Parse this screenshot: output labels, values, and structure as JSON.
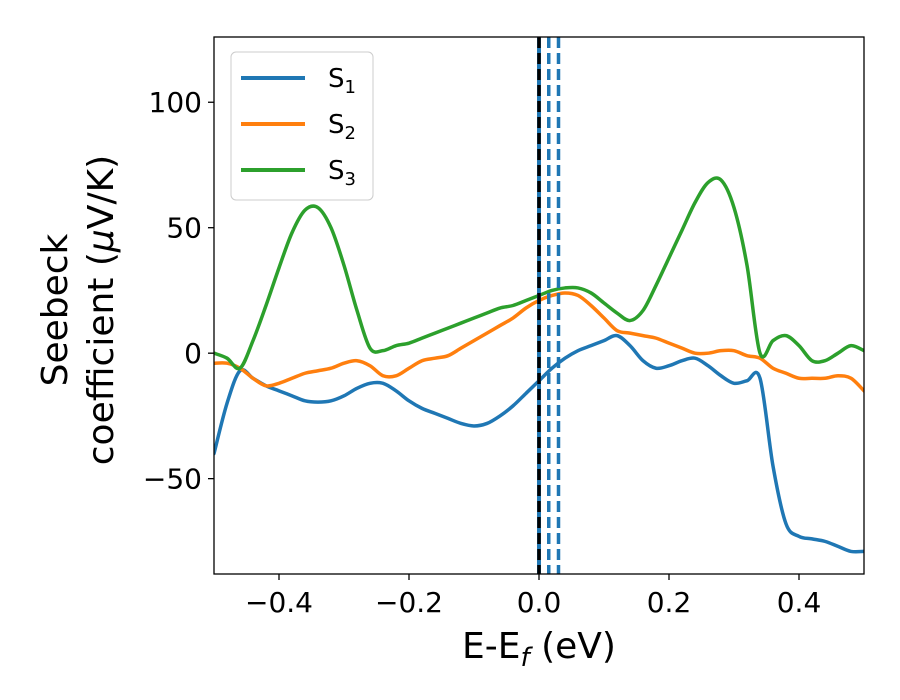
{
  "chart_data": {
    "type": "line",
    "title": "",
    "xlabel": {
      "main": "E-E",
      "sub": "f",
      "suffix": " (eV)"
    },
    "ylabel": {
      "line1": "Seebeck",
      "line2_main": "coefficient  (",
      "line2_greek": "μ",
      "line2_rest": "V/K)"
    },
    "xlim": [
      -0.5,
      0.5
    ],
    "ylim": [
      -88,
      126
    ],
    "xticks": [
      -0.4,
      -0.2,
      0.0,
      0.2,
      0.4
    ],
    "xtick_labels": [
      "−0.4",
      "−0.2",
      "0.0",
      "0.2",
      "0.4"
    ],
    "yticks": [
      -50,
      0,
      50,
      100
    ],
    "ytick_labels": [
      "−50",
      "0",
      "50",
      "100"
    ],
    "grid": false,
    "legend_position": "top-left",
    "series": [
      {
        "name": "S",
        "sub": "1",
        "color": "#1f77b4",
        "x": [
          -0.5,
          -0.48,
          -0.46,
          -0.44,
          -0.42,
          -0.4,
          -0.38,
          -0.36,
          -0.34,
          -0.32,
          -0.3,
          -0.28,
          -0.26,
          -0.24,
          -0.22,
          -0.2,
          -0.18,
          -0.16,
          -0.14,
          -0.12,
          -0.1,
          -0.08,
          -0.06,
          -0.04,
          -0.02,
          0.0,
          0.02,
          0.04,
          0.06,
          0.08,
          0.1,
          0.12,
          0.14,
          0.16,
          0.18,
          0.2,
          0.22,
          0.24,
          0.26,
          0.28,
          0.3,
          0.32,
          0.34,
          0.36,
          0.38,
          0.4,
          0.42,
          0.44,
          0.46,
          0.48,
          0.5
        ],
        "y": [
          -40,
          -20,
          -7,
          -10,
          -13,
          -15,
          -17,
          -19,
          -19.5,
          -19,
          -17,
          -14,
          -12,
          -12,
          -15,
          -19,
          -22,
          -24,
          -26,
          -28,
          -29,
          -28,
          -25,
          -21,
          -16,
          -11,
          -6,
          -2,
          1,
          3,
          5,
          7,
          3,
          -3,
          -6,
          -5,
          -3,
          -2,
          -5,
          -9,
          -12,
          -11,
          -10,
          -45,
          -68,
          -73,
          -74,
          -75,
          -77,
          -79,
          -79
        ]
      },
      {
        "name": "S",
        "sub": "2",
        "color": "#ff7f0e",
        "x": [
          -0.5,
          -0.48,
          -0.46,
          -0.44,
          -0.42,
          -0.4,
          -0.38,
          -0.36,
          -0.34,
          -0.32,
          -0.3,
          -0.28,
          -0.26,
          -0.24,
          -0.22,
          -0.2,
          -0.18,
          -0.16,
          -0.14,
          -0.12,
          -0.1,
          -0.08,
          -0.06,
          -0.04,
          -0.02,
          0.0,
          0.02,
          0.04,
          0.06,
          0.08,
          0.1,
          0.12,
          0.14,
          0.16,
          0.18,
          0.2,
          0.22,
          0.24,
          0.26,
          0.28,
          0.3,
          0.32,
          0.34,
          0.36,
          0.38,
          0.4,
          0.42,
          0.44,
          0.46,
          0.48,
          0.5
        ],
        "y": [
          -4,
          -4,
          -6,
          -10,
          -13,
          -12,
          -10,
          -8,
          -7,
          -6,
          -4,
          -3,
          -5,
          -9,
          -9,
          -6,
          -3,
          -2,
          -1,
          2,
          5,
          8,
          11,
          14,
          18,
          21,
          23,
          24,
          23,
          19,
          14,
          9,
          8,
          7,
          6,
          4,
          2,
          0,
          0,
          1,
          1,
          -1,
          -2,
          -6,
          -8,
          -10,
          -10,
          -10,
          -9,
          -10,
          -15
        ]
      },
      {
        "name": "S",
        "sub": "3",
        "color": "#2ca02c",
        "x": [
          -0.5,
          -0.48,
          -0.46,
          -0.44,
          -0.42,
          -0.4,
          -0.38,
          -0.36,
          -0.34,
          -0.32,
          -0.3,
          -0.28,
          -0.26,
          -0.24,
          -0.22,
          -0.2,
          -0.18,
          -0.16,
          -0.14,
          -0.12,
          -0.1,
          -0.08,
          -0.06,
          -0.04,
          -0.02,
          0.0,
          0.02,
          0.04,
          0.06,
          0.08,
          0.1,
          0.12,
          0.14,
          0.16,
          0.18,
          0.2,
          0.22,
          0.24,
          0.26,
          0.28,
          0.3,
          0.32,
          0.34,
          0.36,
          0.38,
          0.4,
          0.42,
          0.44,
          0.46,
          0.48,
          0.5
        ],
        "y": [
          0,
          -2,
          -6,
          5,
          19,
          34,
          48,
          57,
          58,
          50,
          35,
          17,
          2,
          1,
          3,
          4,
          6,
          8,
          10,
          12,
          14,
          16,
          18,
          19,
          21,
          23,
          25,
          26,
          26,
          24,
          20,
          16,
          13,
          17,
          27,
          38,
          49,
          60,
          68,
          69,
          58,
          35,
          0,
          5,
          7,
          3,
          -3,
          -3,
          0,
          3,
          1
        ]
      }
    ],
    "vlines": [
      {
        "x": 0.0,
        "color": "#000000",
        "style": "dashed",
        "underlay_color": "#1f77b4"
      },
      {
        "x": 0.015,
        "color": "#1f77b4",
        "style": "dashed"
      },
      {
        "x": 0.03,
        "color": "#1f77b4",
        "style": "dashed"
      }
    ]
  }
}
